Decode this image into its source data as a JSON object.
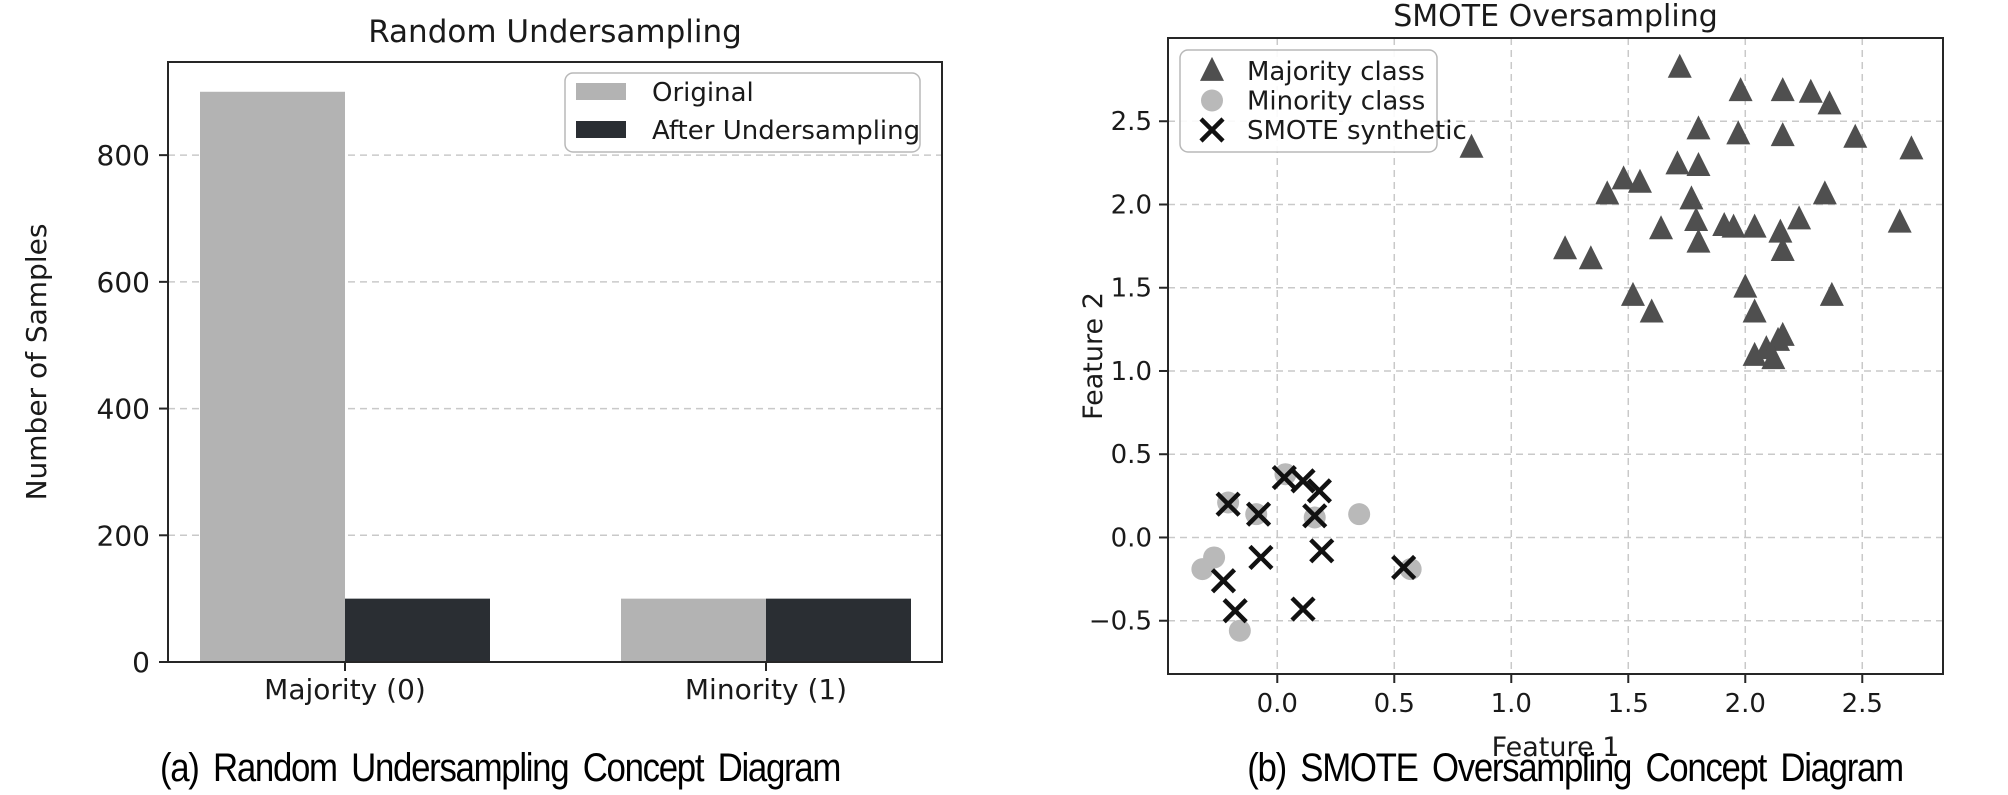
{
  "page": {
    "background": "#ffffff"
  },
  "captions": {
    "a": "(a) Random Undersampling Concept Diagram",
    "b": "(b) SMOTE Oversampling Concept Diagram"
  },
  "chart_data": [
    {
      "type": "bar",
      "title": "Random Undersampling",
      "xlabel": "",
      "ylabel": "Number of Samples",
      "categories": [
        "Majority (0)",
        "Minority (1)"
      ],
      "series": [
        {
          "name": "Original",
          "color": "#b3b3b3",
          "values": [
            900,
            100
          ]
        },
        {
          "name": "After Undersampling",
          "color": "#2a2e33",
          "values": [
            100,
            100
          ]
        }
      ],
      "yticks": [
        0,
        200,
        400,
        600,
        800
      ],
      "ylim": [
        0,
        947
      ],
      "grid": "horizontal-dashed",
      "legend_position": "upper-right"
    },
    {
      "type": "scatter",
      "title": "SMOTE Oversampling",
      "xlabel": "Feature 1",
      "ylabel": "Feature 2",
      "xticks": [
        0.0,
        0.5,
        1.0,
        1.5,
        2.0,
        2.5
      ],
      "yticks": [
        -0.5,
        0.0,
        0.5,
        1.0,
        1.5,
        2.0,
        2.5
      ],
      "xlim": [
        -0.467,
        2.845
      ],
      "ylim": [
        -0.82,
        3.0
      ],
      "grid": "both-dashed",
      "legend_position": "upper-left",
      "series": [
        {
          "name": "Majority class",
          "marker": "triangle",
          "color": "#4f4f4f",
          "points": [
            [
              1.72,
              2.82
            ],
            [
              1.98,
              2.68
            ],
            [
              2.16,
              2.68
            ],
            [
              2.28,
              2.67
            ],
            [
              2.36,
              2.6
            ],
            [
              1.8,
              2.45
            ],
            [
              1.97,
              2.42
            ],
            [
              2.16,
              2.41
            ],
            [
              2.47,
              2.4
            ],
            [
              2.71,
              2.33
            ],
            [
              0.83,
              2.34
            ],
            [
              1.71,
              2.24
            ],
            [
              1.8,
              2.23
            ],
            [
              1.48,
              2.15
            ],
            [
              1.55,
              2.13
            ],
            [
              1.41,
              2.06
            ],
            [
              1.77,
              2.03
            ],
            [
              2.34,
              2.06
            ],
            [
              1.79,
              1.9
            ],
            [
              1.64,
              1.85
            ],
            [
              1.91,
              1.87
            ],
            [
              1.95,
              1.86
            ],
            [
              2.04,
              1.86
            ],
            [
              2.15,
              1.83
            ],
            [
              2.23,
              1.91
            ],
            [
              1.8,
              1.77
            ],
            [
              2.16,
              1.72
            ],
            [
              2.66,
              1.89
            ],
            [
              1.23,
              1.73
            ],
            [
              1.34,
              1.67
            ],
            [
              2.0,
              1.5
            ],
            [
              2.37,
              1.45
            ],
            [
              1.52,
              1.45
            ],
            [
              1.6,
              1.35
            ],
            [
              2.04,
              1.35
            ],
            [
              2.16,
              1.21
            ],
            [
              2.04,
              1.09
            ],
            [
              2.09,
              1.13
            ],
            [
              2.14,
              1.18
            ],
            [
              2.12,
              1.07
            ]
          ]
        },
        {
          "name": "Minority class",
          "marker": "circle",
          "color": "#b9b9b9",
          "points": [
            [
              0.035,
              0.38
            ],
            [
              -0.21,
              0.21
            ],
            [
              -0.09,
              0.14
            ],
            [
              0.16,
              0.12
            ],
            [
              0.35,
              0.14
            ],
            [
              -0.27,
              -0.12
            ],
            [
              -0.32,
              -0.19
            ],
            [
              0.57,
              -0.19
            ],
            [
              -0.16,
              -0.56
            ]
          ]
        },
        {
          "name": "SMOTE synthetic",
          "marker": "x",
          "color": "#111111",
          "points": [
            [
              0.03,
              0.36
            ],
            [
              0.11,
              0.34
            ],
            [
              0.18,
              0.28
            ],
            [
              -0.21,
              0.2
            ],
            [
              -0.08,
              0.14
            ],
            [
              0.16,
              0.13
            ],
            [
              0.19,
              -0.08
            ],
            [
              -0.07,
              -0.12
            ],
            [
              0.54,
              -0.18
            ],
            [
              -0.23,
              -0.26
            ],
            [
              -0.18,
              -0.44
            ],
            [
              0.11,
              -0.43
            ]
          ]
        }
      ]
    }
  ],
  "style": {
    "spine_color": "#262626",
    "grid_color": "#c9c9c9",
    "legend_border_color": "#b8b8b8",
    "text_color": "#1a1a1a"
  }
}
